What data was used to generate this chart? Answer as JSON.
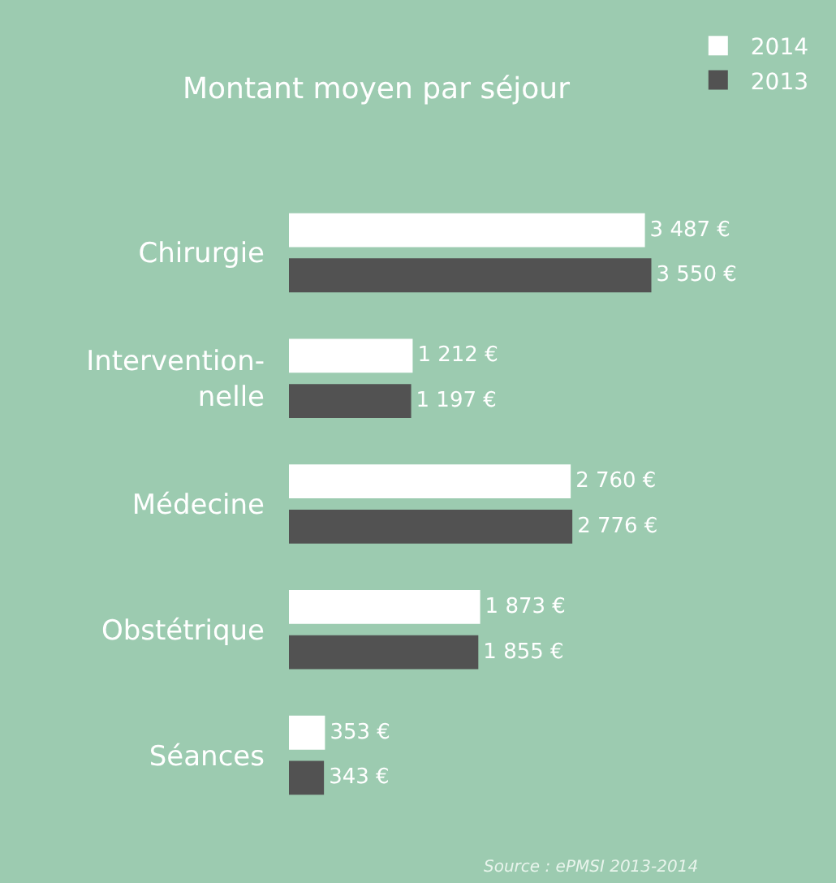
{
  "chart_data": {
    "type": "bar",
    "orientation": "horizontal",
    "title": "Montant moyen par séjour",
    "categories": [
      "Chirurgie",
      "Intervention-\nnelle",
      "Médecine",
      "Obstétrique",
      "Séances"
    ],
    "series": [
      {
        "name": "2014",
        "color": "#ffffff",
        "values": [
          3487,
          1212,
          2760,
          1873,
          353
        ],
        "value_labels": [
          "3 487 €",
          "1 212 €",
          "2 760 €",
          "1 873 €",
          "353 €"
        ]
      },
      {
        "name": "2013",
        "color": "#525252",
        "values": [
          3550,
          1197,
          2776,
          1855,
          343
        ],
        "value_labels": [
          "3 550 €",
          "1 197 €",
          "2 776 €",
          "1 855 €",
          "343 €"
        ]
      }
    ],
    "grid": false,
    "legend": "top right",
    "tick_labels": "y",
    "annotations": [
      "Source : ePMSI 2013-2014"
    ]
  }
}
